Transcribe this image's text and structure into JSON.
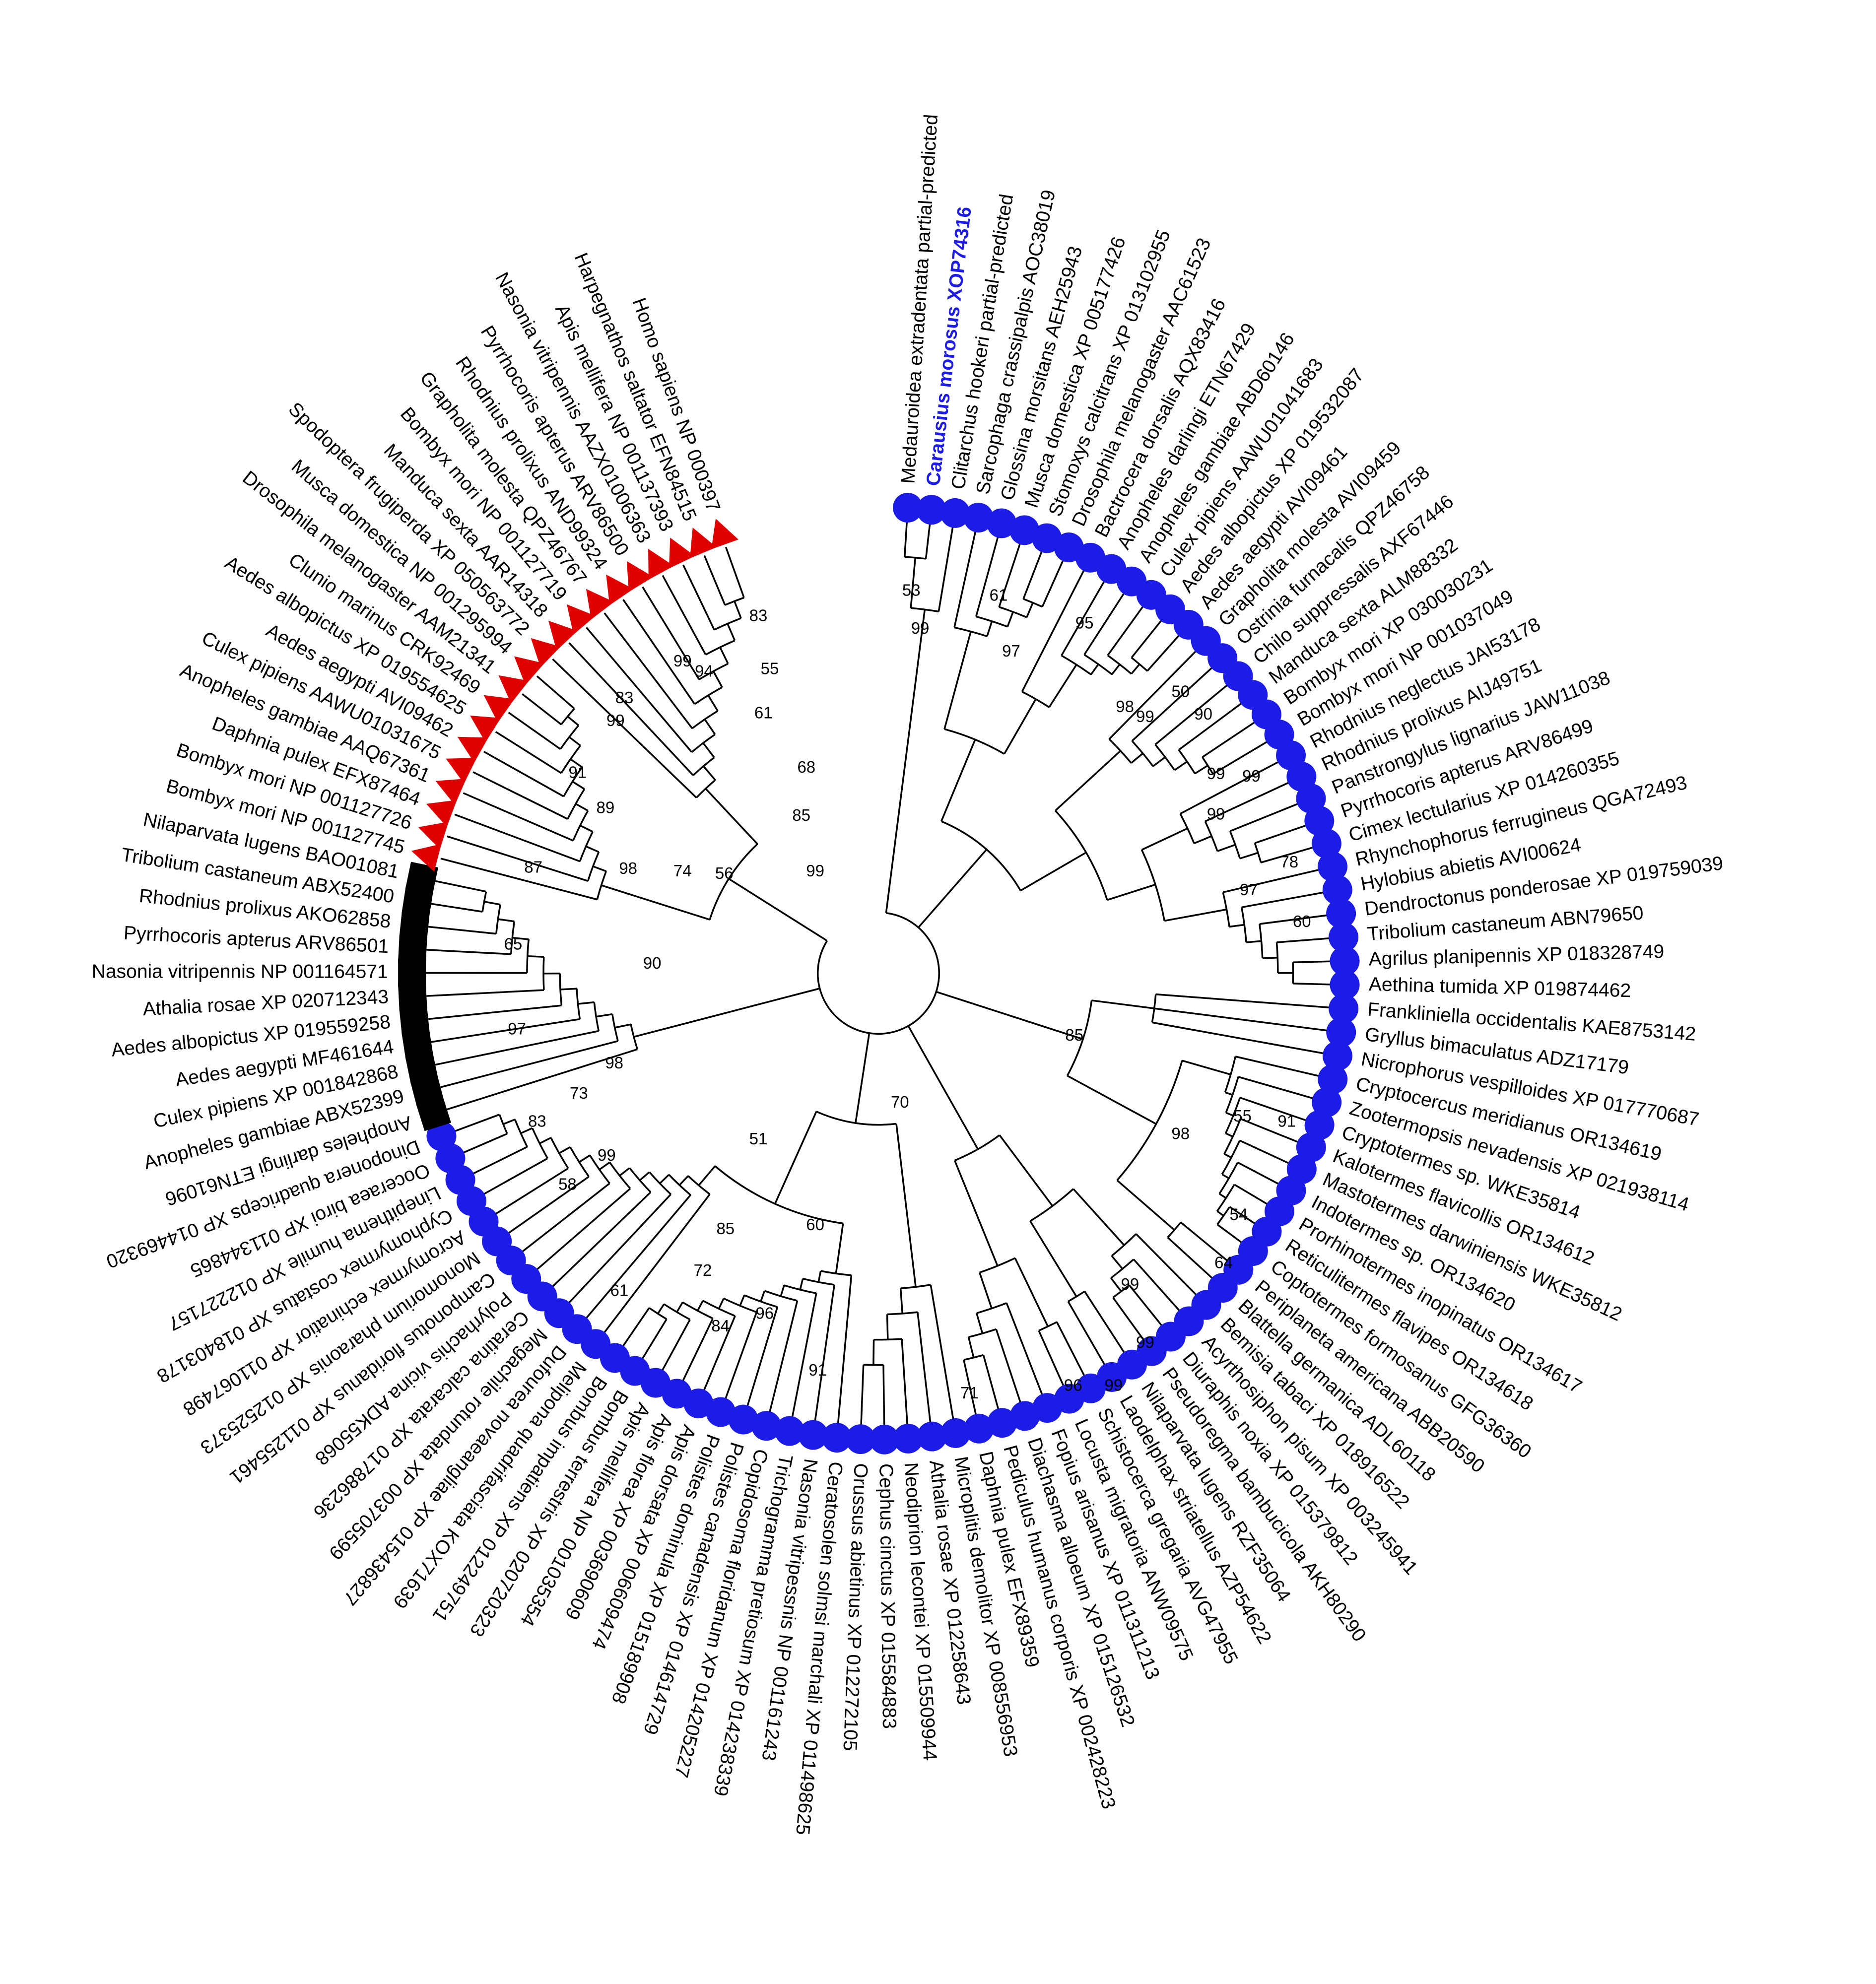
{
  "leaves": [
    {
      "marker": "circle",
      "color": "#1c1ce6",
      "labels": [
        "Medauroidea extradentata partial-predicted",
        "Carausius morosus XOP74316",
        "Clitarchus hookeri partial-predicted",
        "Sarcophaga crassipalpis AOC38019",
        "Glossina morsitans AEH25943",
        "Musca domestica XP 005177426",
        "Stomoxys calcitrans XP 013102955",
        "Drosophila melanogaster AAC61523",
        "Bactrocera dorsalis AQX83416",
        "Anopheles darlingi ETN67429",
        "Anopheles gambiae ABD60146",
        "Culex pipiens AAWU01041683",
        "Aedes albopictus XP 019532087",
        "Aedes aegypti AVI09461",
        "Grapholita molesta AVI09459",
        "Ostrinia furnacalis QPZ46758",
        "Chilo suppressalis AXF67446",
        "Manduca sexta ALM88332",
        "Bombyx mori XP 030030231",
        "Bombyx mori NP 001037049",
        "Rhodnius neglectus JAI53178",
        "Rhodnius prolixus AIJ49751",
        "Panstrongylus lignarius JAW11038",
        "Pyrrhocoris apterus ARV86499",
        "Cimex lectularius XP 014260355",
        "Rhynchophorus ferrugineus QGA72493",
        "Hylobius abietis AVI00624",
        "Dendroctonus ponderosae XP 019759039",
        "Tribolium castaneum ABN79650",
        "Agrilus planipennis XP 018328749",
        "Aethina tumida XP 019874462",
        "Frankliniella occidentalis KAE8753142",
        "Gryllus bimaculatus ADZ17179",
        "Nicrophorus vespilloides XP 017770687",
        "Cryptocercus meridianus OR134619",
        "Zootermopsis nevadensis XP 021938114",
        "Cryptotermes sp. WKE35814",
        "Kalotermes flavicollis OR134612",
        "Mastotermes darwiniensis WKE35812",
        "Indotermes sp. OR134620",
        "Prorhinotermes inopinatus OR134617",
        "Reticulitermes flavipes OR134618",
        "Coptotermes formosanus GFG36360",
        "Periplaneta americana ABB20590",
        "Blattella germanica ADL60118",
        "Bemisia tabaci XP 018916522",
        "Acyrthosiphon pisum XP 003245941",
        "Diuraphis noxia XP 015379812",
        "Pseudoregma bambucicola AKH80290",
        "Nilaparvata lugens RZF35064",
        "Laodelphax striatellus AZP54622",
        "Schistocerca gregaria AVG47955",
        "Locusta migratoria ANW09575",
        "Fopius arisanus XP 011311213",
        "Diachasma alloeum XP 015126532",
        "Pediculus humanus corporis XP 002428223",
        "Daphnia pulex EFX89359",
        "Microplitis demolitor XP 008556953",
        "Athalia rosae XP 012258643",
        "Neodiprion lecontei XP 015509944",
        "Cephus cinctus XP 015584883",
        "Orussus abietinus XP 012272105",
        "Ceratosolen solmsi marchali XP 011498625",
        "Nasonia vitripessnis NP 001161243",
        "Trichogramma pretiosum XP 014238339",
        "Copidosoma floridanum XP 014205227",
        "Polistes canadensis XP 014614729",
        "Polistes dominula XP 015189908",
        "Apis dorsata XP 006609474",
        "Apis florea XP 003690609",
        "Apis mellifera NP 001035354",
        "Bombus terrestris XP 020720323",
        "Bombus impatiens XP 012249751",
        "Melipona quadrifasciata KOX71639",
        "Dufourea novaeangliae XP 015436827",
        "Megachile rotundata XP 003705599",
        "Ceratina calcarata XP 017886236",
        "Polyrhachis vicina ADK55068",
        "Camponotus floridanus XP 011255461",
        "Monomorium pharaonis XP 012525373",
        "Acromyrmex echinatior XP 011067498",
        "Cyphomyrmex costatus XP 018403178",
        "Linepithema humile XP 012227157",
        "Ooceraea biroi XP 011344865",
        "Dinoponera quadriceps XP 014469320"
      ]
    },
    {
      "marker": "square",
      "color": "#000000",
      "labels": [
        "Anopheles darlingi ETN61096",
        "Anopheles gambiae ABX52399",
        "Culex pipiens XP 001842868",
        "Aedes aegypti MF461644",
        "Aedes albopictus XP 019559258",
        "Athalia rosae XP 020712343",
        "Nasonia vitripennis NP 001164571",
        "Pyrrhocoris apterus ARV86501",
        "Rhodnius prolixus AKO62858",
        "Tribolium castaneum ABX52400",
        "Nilaparvata lugens BAO01081"
      ]
    },
    {
      "marker": "triangle",
      "color": "#e00000",
      "labels": [
        "Bombyx mori NP 001127745",
        "Bombyx mori NP 001127726",
        "Daphnia pulex EFX87464",
        "Anopheles gambiae AAQ67361",
        "Culex pipiens AAWU01031675",
        "Aedes aegypti AVI09462",
        "Aedes albopictus XP 019554625",
        "Clunio marinus CRK92469",
        "Drosophila melanogaster AAM21341",
        "Musca domestica NP 001295994",
        "Spodoptera frugiperda XP 050563772",
        "Manduca sexta AAR14318",
        "Bombyx mori NP 001127719",
        "Grapholita molesta QPZ46767",
        "Rhodnius prolixus AND99324",
        "Pyrrhocoris apterus ARV86500",
        "Nasonia vitripennis AAZX01006363",
        "Apis mellifera NP 001137393",
        "Harpegnathos saltator EFN84515",
        "Homo sapiens NP 000397"
      ]
    }
  ],
  "bootstrap": [
    53,
    99,
    61,
    97,
    95,
    98,
    99,
    50,
    90,
    99,
    99,
    99,
    78,
    97,
    60,
    85,
    70,
    98,
    55,
    91,
    54,
    64,
    99,
    99,
    99,
    96,
    71,
    91,
    96,
    84,
    72,
    85,
    60,
    51,
    61,
    58,
    99,
    83,
    73,
    98,
    97,
    65,
    90,
    87,
    98,
    74,
    89,
    91,
    99,
    83,
    94,
    99,
    56,
    85,
    99,
    68,
    61,
    55,
    83
  ]
}
